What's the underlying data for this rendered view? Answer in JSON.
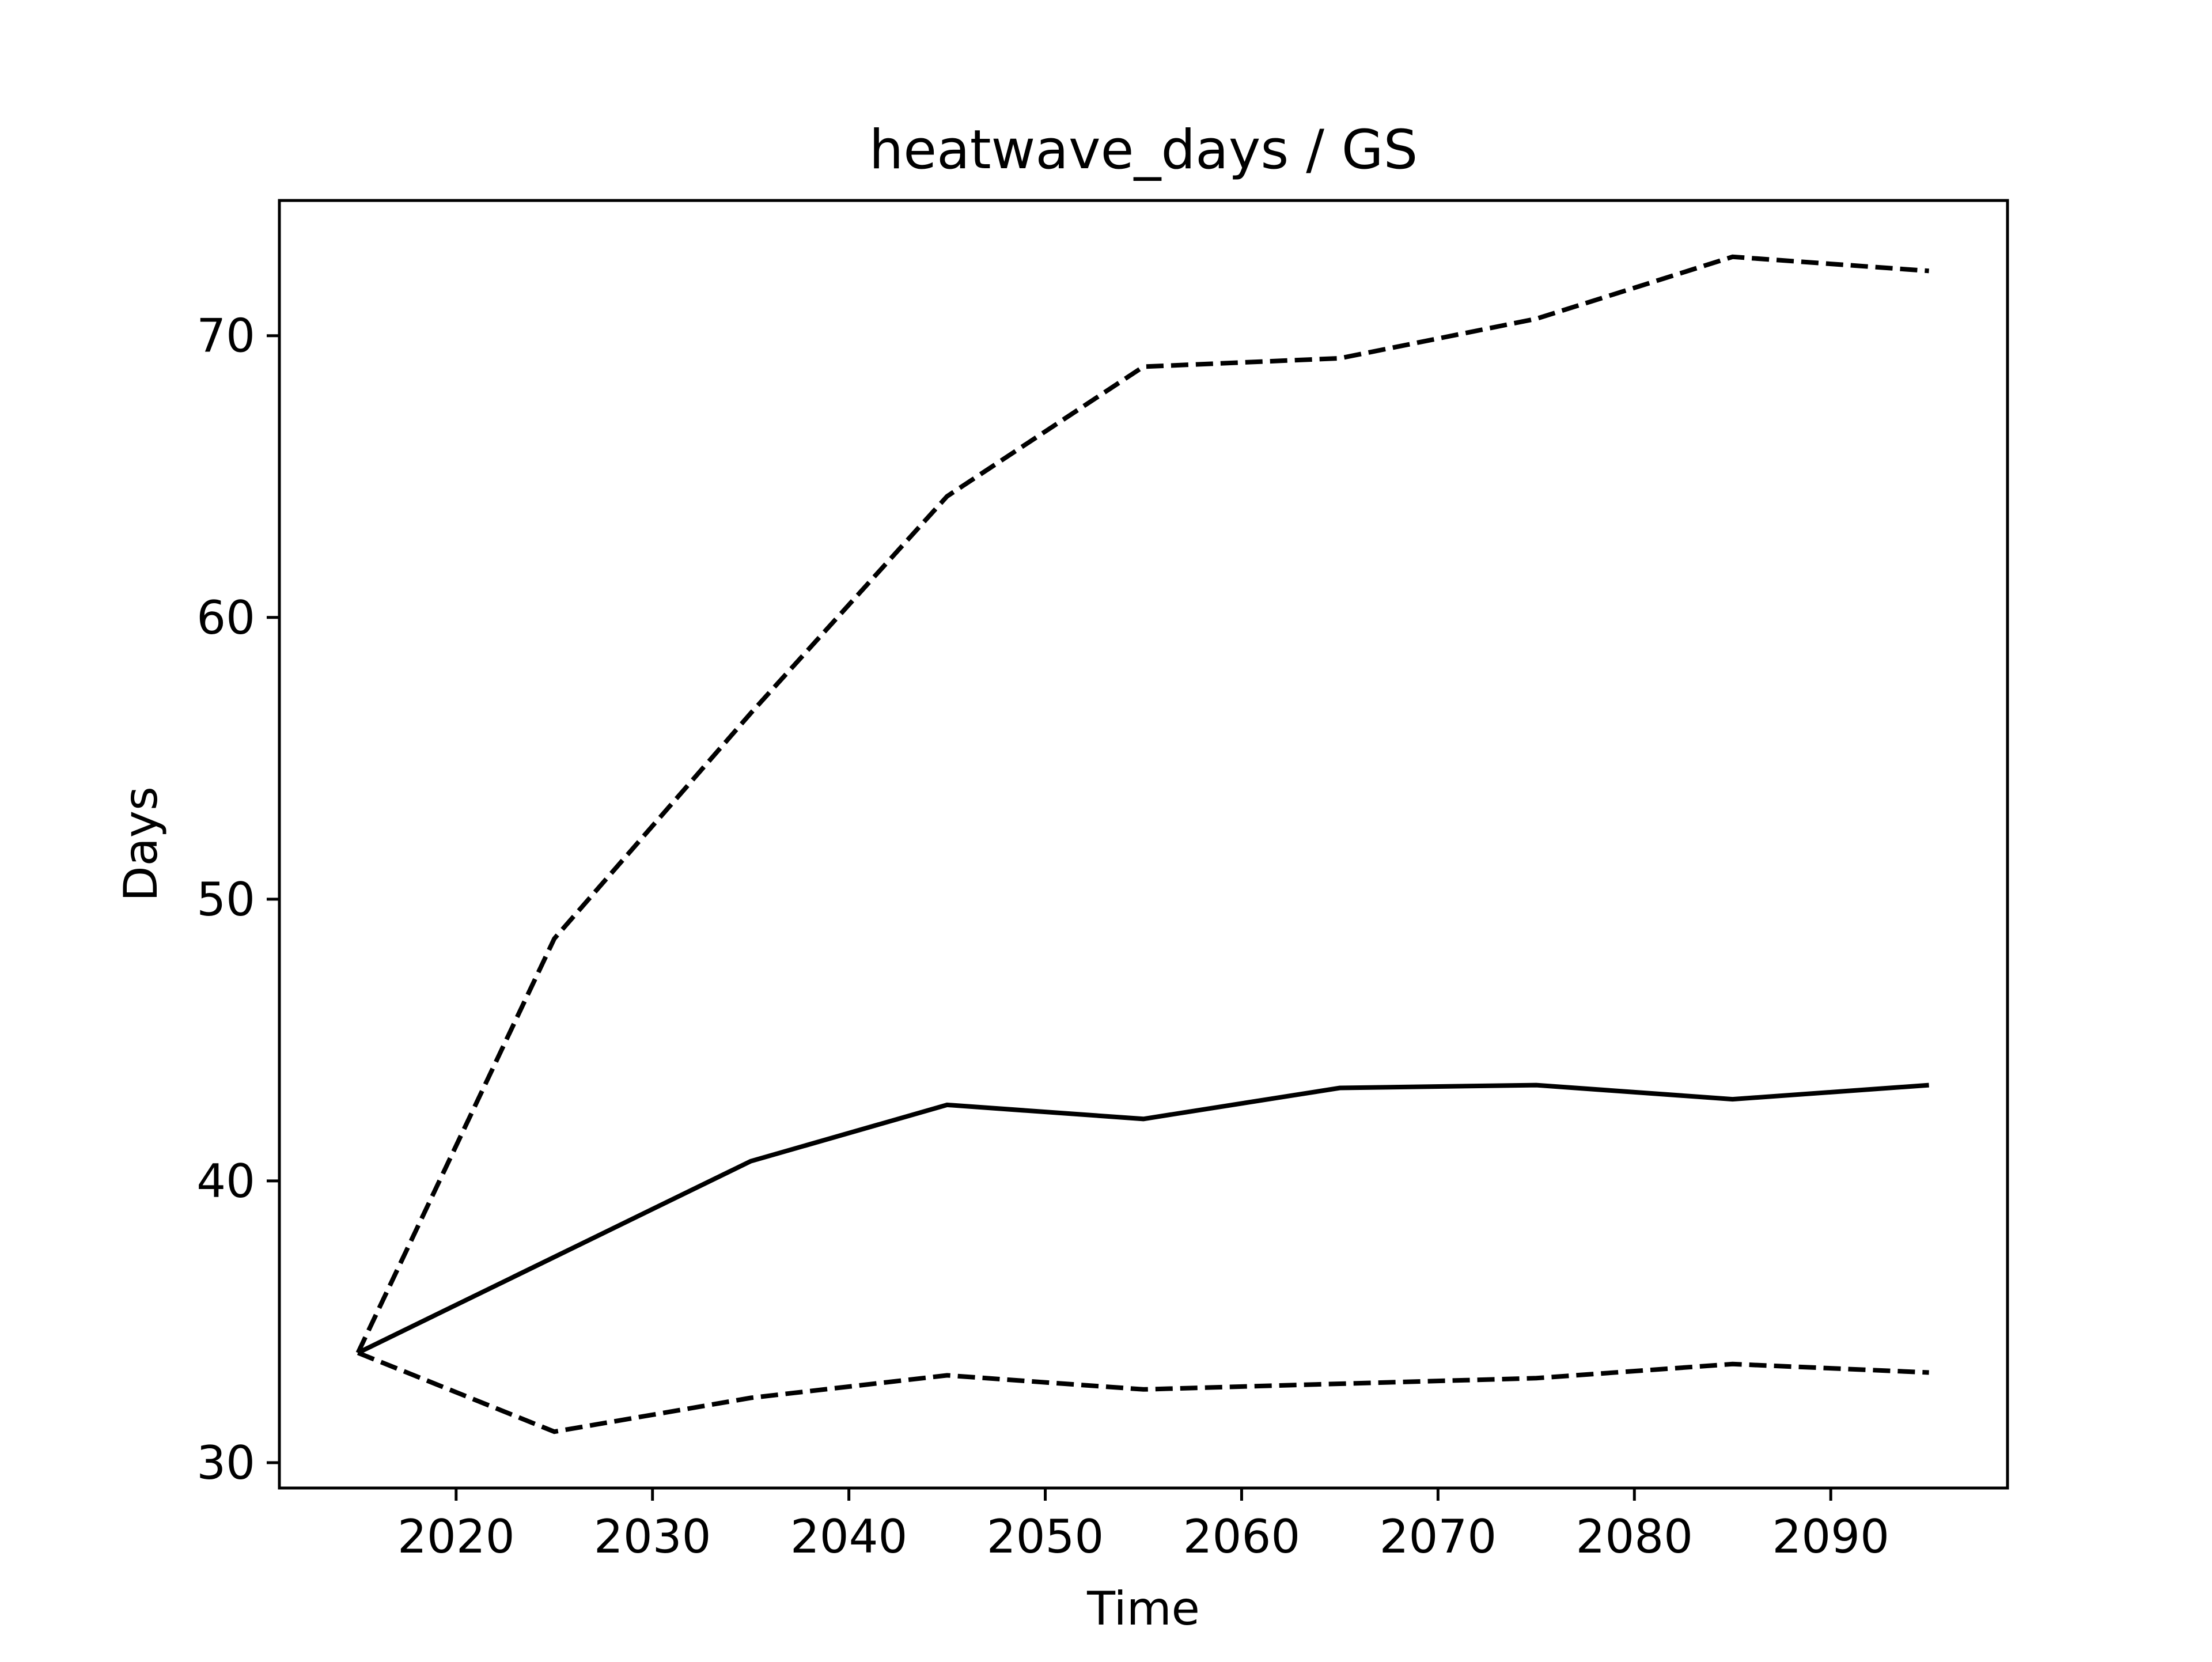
{
  "chart_data": {
    "type": "line",
    "title": "heatwave_days / GS",
    "xlabel": "Time",
    "ylabel": "Days",
    "x": [
      2015,
      2025,
      2035,
      2045,
      2055,
      2065,
      2075,
      2085,
      2095
    ],
    "xlim": [
      2011,
      2099
    ],
    "ylim": [
      29.1,
      74.8
    ],
    "xticks": [
      2020,
      2030,
      2040,
      2050,
      2060,
      2070,
      2080,
      2090
    ],
    "yticks": [
      30,
      40,
      50,
      60,
      70
    ],
    "grid": false,
    "series": [
      {
        "style": "dashed",
        "color": "#000000",
        "values": [
          33.9,
          48.6,
          56.6,
          64.3,
          68.9,
          69.2,
          70.6,
          72.8,
          72.3
        ]
      },
      {
        "style": "solid",
        "color": "#000000",
        "values": [
          33.9,
          37.3,
          40.7,
          42.7,
          42.2,
          43.3,
          43.4,
          42.9,
          43.4
        ]
      },
      {
        "style": "dashed",
        "color": "#000000",
        "values": [
          33.9,
          31.1,
          32.3,
          33.1,
          32.6,
          32.8,
          33.0,
          33.5,
          33.2
        ]
      }
    ]
  }
}
